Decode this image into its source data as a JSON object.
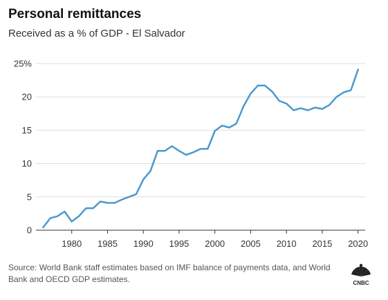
{
  "title": "Personal remittances",
  "subtitle": "Received as a % of GDP - El Salvador",
  "source": "Source: World Bank staff estimates based on IMF balance of payments data, and World Bank and OECD GDP estimates.",
  "logo_text": "CNBC",
  "colors": {
    "line": "#4a98d0",
    "grid": "#dddddd",
    "axis": "#333333"
  },
  "chart_data": {
    "type": "line",
    "title": "Personal remittances",
    "subtitle": "Received as a % of GDP - El Salvador",
    "xlabel": "",
    "ylabel": "",
    "xlim": [
      1975,
      2021
    ],
    "ylim": [
      0,
      25
    ],
    "grid": true,
    "y_ticks": [
      {
        "value": 0,
        "label": "0"
      },
      {
        "value": 5,
        "label": "5"
      },
      {
        "value": 10,
        "label": "10"
      },
      {
        "value": 15,
        "label": "15"
      },
      {
        "value": 20,
        "label": "20"
      },
      {
        "value": 25,
        "label": "25%"
      }
    ],
    "x_ticks": [
      {
        "value": 1980,
        "label": "1980"
      },
      {
        "value": 1985,
        "label": "1985"
      },
      {
        "value": 1990,
        "label": "1990"
      },
      {
        "value": 1995,
        "label": "1995"
      },
      {
        "value": 2000,
        "label": "2000"
      },
      {
        "value": 2005,
        "label": "2005"
      },
      {
        "value": 2010,
        "label": "2010"
      },
      {
        "value": 2015,
        "label": "2015"
      },
      {
        "value": 2020,
        "label": "2020"
      }
    ],
    "x": [
      1976,
      1977,
      1978,
      1979,
      1980,
      1981,
      1982,
      1983,
      1984,
      1985,
      1986,
      1987,
      1988,
      1989,
      1990,
      1991,
      1992,
      1993,
      1994,
      1995,
      1996,
      1997,
      1998,
      1999,
      2000,
      2001,
      2002,
      2003,
      2004,
      2005,
      2006,
      2007,
      2008,
      2009,
      2010,
      2011,
      2012,
      2013,
      2014,
      2015,
      2016,
      2017,
      2018,
      2019,
      2020
    ],
    "series": [
      {
        "values": [
          0.4,
          1.8,
          2.1,
          2.8,
          1.3,
          2.1,
          3.3,
          3.3,
          4.3,
          4.1,
          4.1,
          4.6,
          5.0,
          5.4,
          7.6,
          8.9,
          11.9,
          11.9,
          12.6,
          11.9,
          11.3,
          11.7,
          12.2,
          12.2,
          14.9,
          15.7,
          15.4,
          16.0,
          18.6,
          20.5,
          21.7,
          21.7,
          20.8,
          19.4,
          19.0,
          18.0,
          18.3,
          18.0,
          18.4,
          18.2,
          18.8,
          20.0,
          20.7,
          21.0,
          24.1
        ]
      }
    ]
  }
}
